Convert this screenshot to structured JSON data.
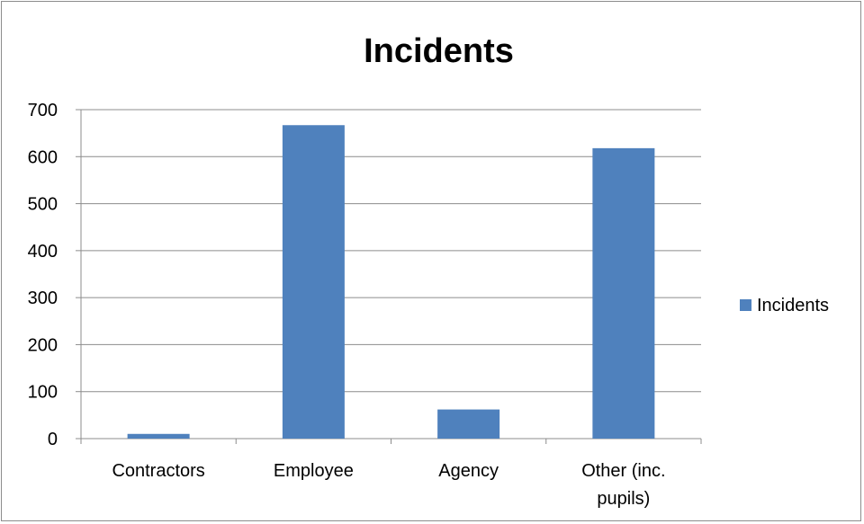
{
  "chart_data": {
    "type": "bar",
    "title": "Incidents",
    "categories": [
      "Contractors",
      "Employee",
      "Agency",
      "Other (inc. pupils)"
    ],
    "category_lines": [
      [
        "Contractors"
      ],
      [
        "Employee"
      ],
      [
        "Agency"
      ],
      [
        "Other (inc.",
        "pupils)"
      ]
    ],
    "series": [
      {
        "name": "Incidents",
        "values": [
          10,
          667,
          62,
          618
        ],
        "color": "#4f81bd"
      }
    ],
    "ylim": [
      0,
      700
    ],
    "yticks": [
      0,
      100,
      200,
      300,
      400,
      500,
      600,
      700
    ],
    "grid": true,
    "legend_position": "right"
  }
}
